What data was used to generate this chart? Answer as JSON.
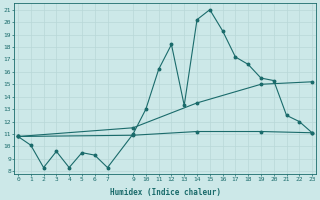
{
  "xlabel": "Humidex (Indice chaleur)",
  "bg_color": "#cce8e8",
  "grid_color": "#b8d8d8",
  "line_color": "#1a6b6b",
  "xticks": [
    0,
    1,
    2,
    3,
    4,
    5,
    6,
    7,
    9,
    10,
    11,
    12,
    13,
    14,
    15,
    16,
    17,
    18,
    19,
    20,
    21,
    22,
    23
  ],
  "yticks": [
    8,
    9,
    10,
    11,
    12,
    13,
    14,
    15,
    16,
    17,
    18,
    19,
    20,
    21
  ],
  "xlim": [
    -0.3,
    23.3
  ],
  "ylim": [
    7.8,
    21.5
  ],
  "series1_x": [
    0,
    1,
    2,
    3,
    4,
    5,
    6,
    7,
    9,
    10,
    11,
    12,
    13,
    14,
    15,
    16,
    17,
    18,
    19,
    20,
    21,
    22,
    23
  ],
  "series1_y": [
    10.8,
    10.1,
    8.3,
    9.6,
    8.3,
    9.5,
    9.3,
    8.3,
    11.0,
    13.0,
    16.2,
    18.2,
    13.3,
    20.2,
    21.0,
    19.3,
    17.2,
    16.6,
    15.5,
    15.3,
    12.5,
    12.0,
    11.1
  ],
  "series2_x": [
    0,
    9,
    14,
    19,
    23
  ],
  "series2_y": [
    10.8,
    11.5,
    13.5,
    15.0,
    15.2
  ],
  "series3_x": [
    0,
    9,
    14,
    19,
    23
  ],
  "series3_y": [
    10.8,
    10.9,
    11.2,
    11.2,
    11.1
  ],
  "marker_size": 1.8
}
